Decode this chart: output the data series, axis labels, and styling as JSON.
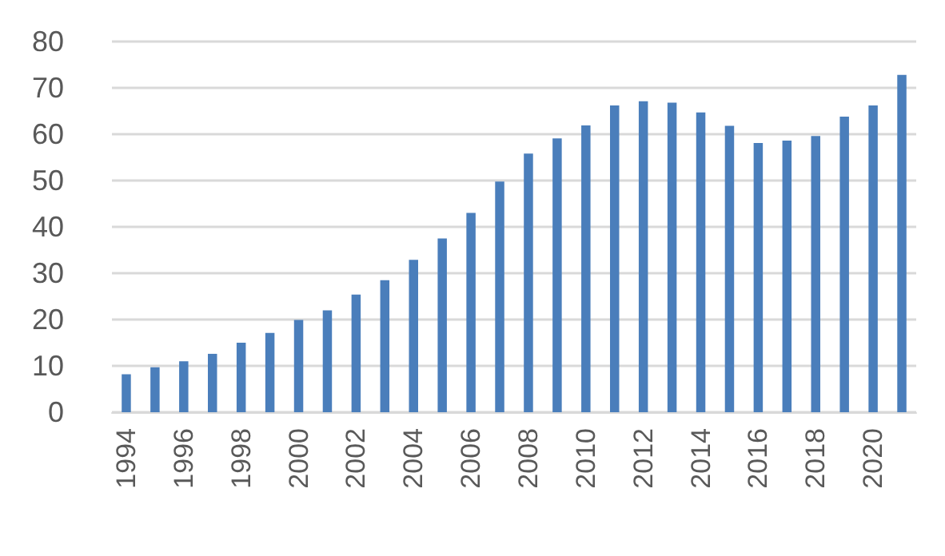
{
  "chart_data": {
    "type": "bar",
    "categories": [
      "1994",
      null,
      "1996",
      null,
      "1998",
      null,
      "2000",
      null,
      "2002",
      null,
      "2004",
      null,
      "2006",
      null,
      "2008",
      null,
      "2010",
      null,
      "2012",
      null,
      "2014",
      null,
      "2016",
      null,
      "2018",
      null,
      "2020",
      null
    ],
    "values": [
      8.2,
      9.7,
      11,
      12.6,
      15,
      17.1,
      19.9,
      22,
      25.4,
      28.5,
      32.9,
      37.5,
      43,
      49.8,
      55.8,
      59.1,
      61.9,
      66.2,
      67.1,
      66.8,
      64.7,
      61.8,
      58.1,
      58.6,
      59.6,
      63.8,
      66.2,
      72.8
    ],
    "color": "#4a7ebb",
    "ylim": [
      0,
      80
    ],
    "yticks": [
      0,
      10,
      20,
      30,
      40,
      50,
      60,
      70,
      80
    ],
    "grid": "y"
  }
}
